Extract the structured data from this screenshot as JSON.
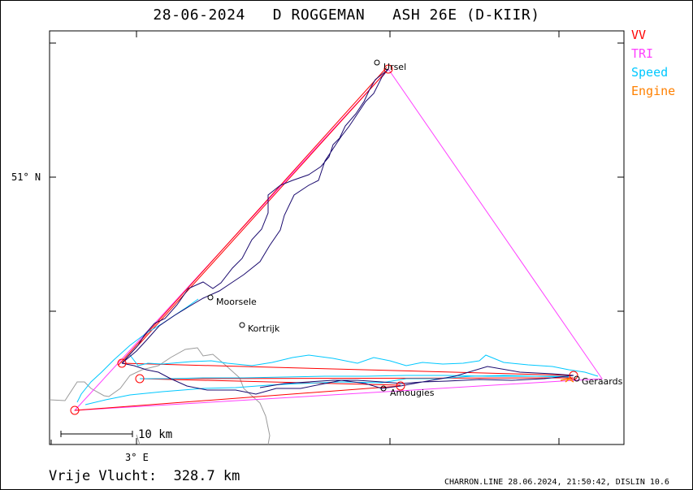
{
  "title": "28-06-2024   D ROGGEMAN   ASH 26E (D-KIIR)",
  "legend": [
    {
      "label": "VV",
      "color": "#ff0000"
    },
    {
      "label": "TRI",
      "color": "#ff40ff"
    },
    {
      "label": "Speed",
      "color": "#00c8ff"
    },
    {
      "label": "Engine",
      "color": "#ff8000"
    }
  ],
  "axes": {
    "lat_label": "51° N",
    "lon_label": "3° E"
  },
  "scale_bar": {
    "label": "10 km"
  },
  "places": {
    "ursel": "Ursel",
    "moorsele": "Moorsele",
    "kortrijk": "Kortrijk",
    "amougies": "Amougies",
    "geraards": "Geraards"
  },
  "footer": {
    "distance": "Vrije Vlucht:  328.7 km",
    "credit": "CHARRON.LINE 28.06.2024, 21:50:42, DISLIN 10.6"
  },
  "colors": {
    "track": "#1a0a6e",
    "vv": "#ff0000",
    "tri": "#ff40ff",
    "speed": "#00c8ff",
    "engine": "#ff8000",
    "border": "#9a9a9a"
  }
}
